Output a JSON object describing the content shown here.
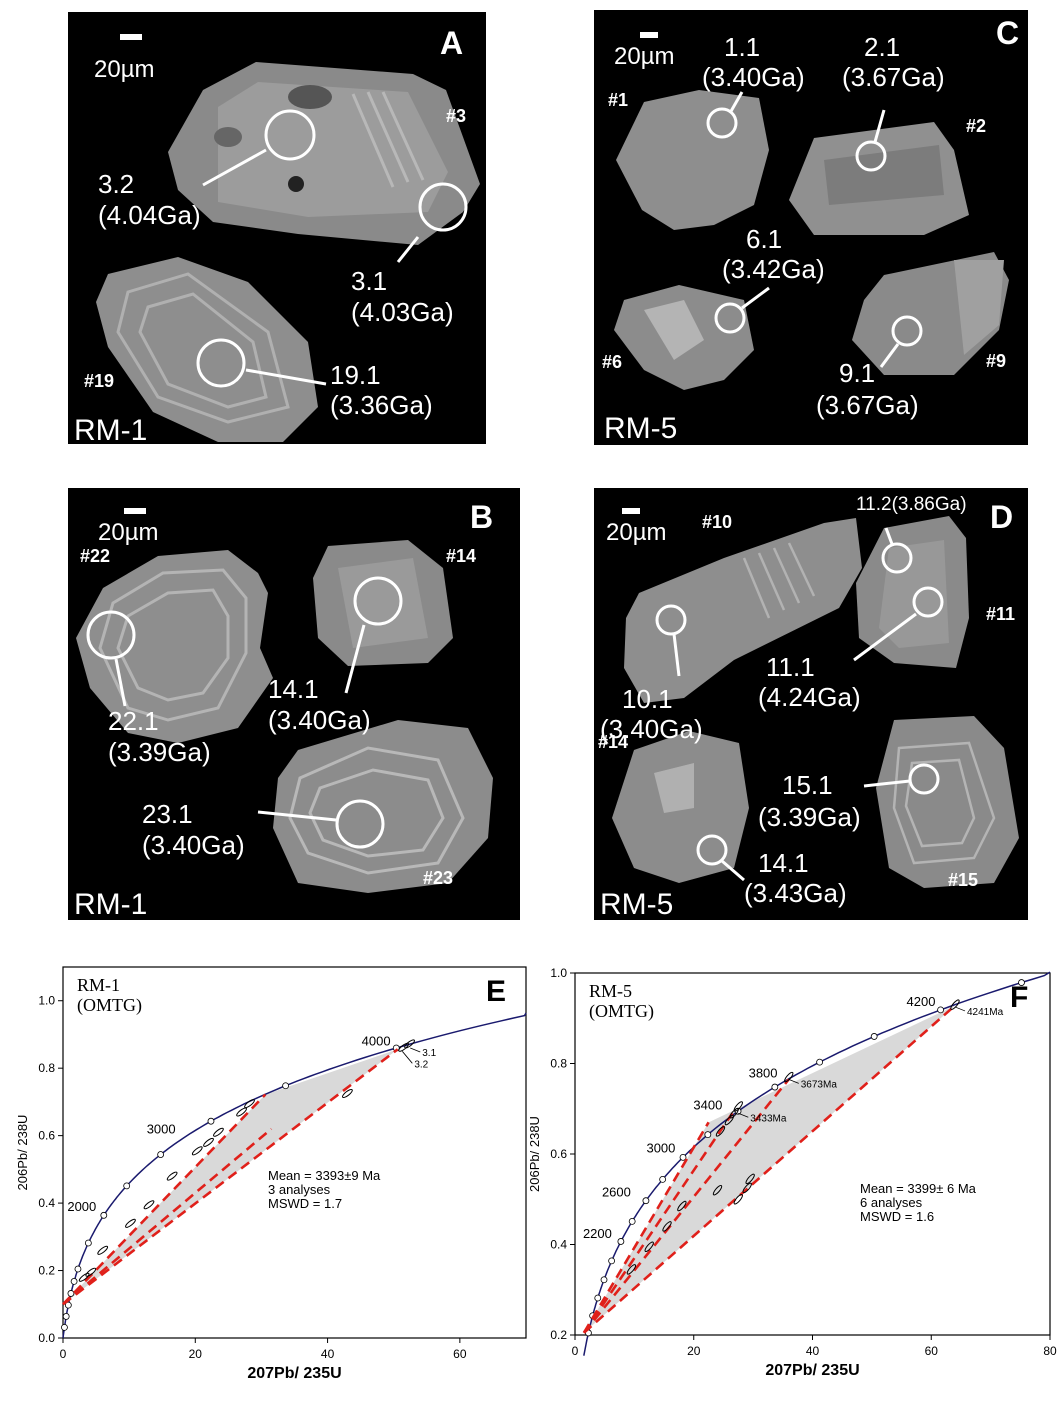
{
  "panels": {
    "A": {
      "letter": "A",
      "sample": "RM-1",
      "scale": "20µm",
      "grains": [
        "#3",
        "#19"
      ],
      "spots": [
        {
          "id": "3.2",
          "age": "(4.04Ga)"
        },
        {
          "id": "3.1",
          "age": "(4.03Ga)"
        },
        {
          "id": "19.1",
          "age": "(3.36Ga)"
        }
      ]
    },
    "B": {
      "letter": "B",
      "sample": "RM-1",
      "scale": "20µm",
      "grains": [
        "#22",
        "#14",
        "#23"
      ],
      "spots": [
        {
          "id": "22.1",
          "age": "(3.39Ga)"
        },
        {
          "id": "14.1",
          "age": "(3.40Ga)"
        },
        {
          "id": "23.1",
          "age": "(3.40Ga)"
        }
      ]
    },
    "C": {
      "letter": "C",
      "sample": "RM-5",
      "scale": "20µm",
      "grains": [
        "#1",
        "#2",
        "#6",
        "#9"
      ],
      "spots": [
        {
          "id": "1.1",
          "age": "(3.40Ga)"
        },
        {
          "id": "2.1",
          "age": "(3.67Ga)"
        },
        {
          "id": "6.1",
          "age": "(3.42Ga)"
        },
        {
          "id": "9.1",
          "age": "(3.67Ga)"
        }
      ]
    },
    "D": {
      "letter": "D",
      "sample": "RM-5",
      "scale": "20µm",
      "grains": [
        "#10",
        "#11",
        "#14",
        "#15"
      ],
      "spots": [
        {
          "id": "11.2(3.86Ga)",
          "age": ""
        },
        {
          "id": "10.1",
          "age": "(3.40Ga)"
        },
        {
          "id": "11.1",
          "age": "(4.24Ga)"
        },
        {
          "id": "15.1",
          "age": "(3.39Ga)"
        },
        {
          "id": "14.1",
          "age": "(3.43Ga)"
        }
      ]
    }
  },
  "chart_data": [
    {
      "type": "scatter",
      "panel": "E",
      "title_line1": "RM-1",
      "title_line2": "(OMTG)",
      "xlabel": "207Pb/ 235U",
      "ylabel": "206Pb/ 238U",
      "xlim": [
        0,
        70
      ],
      "ylim": [
        0,
        1.1
      ],
      "xticks": [
        0,
        20,
        40,
        60
      ],
      "yticks": [
        0.0,
        0.2,
        0.4,
        0.6,
        0.8,
        1.0
      ],
      "concordia_age_labels": [
        {
          "age": 2000,
          "x": 6.1,
          "y": 0.364
        },
        {
          "age": 3000,
          "x": 18.1,
          "y": 0.595
        },
        {
          "age": 4000,
          "x": 50.6,
          "y": 0.856
        }
      ],
      "spot_labels": [
        {
          "text": "3.1",
          "x": 52.5,
          "y": 0.86
        },
        {
          "text": "3.2",
          "x": 51.3,
          "y": 0.85
        }
      ],
      "ellipses": [
        {
          "x": 52.4,
          "y": 0.872
        },
        {
          "x": 51.5,
          "y": 0.862
        },
        {
          "x": 43.0,
          "y": 0.725
        },
        {
          "x": 28.2,
          "y": 0.695
        },
        {
          "x": 27.0,
          "y": 0.67
        },
        {
          "x": 23.5,
          "y": 0.61
        },
        {
          "x": 22.0,
          "y": 0.58
        },
        {
          "x": 20.3,
          "y": 0.555
        },
        {
          "x": 16.5,
          "y": 0.48
        },
        {
          "x": 13.0,
          "y": 0.395
        },
        {
          "x": 10.2,
          "y": 0.34
        },
        {
          "x": 6.0,
          "y": 0.26
        },
        {
          "x": 3.2,
          "y": 0.18
        },
        {
          "x": 4.2,
          "y": 0.195
        }
      ],
      "discordia_lines": [
        {
          "from": [
            0,
            0.1
          ],
          "to": [
            30.6,
            0.722
          ]
        },
        {
          "from": [
            0,
            0.1
          ],
          "to": [
            50.6,
            0.856
          ]
        },
        {
          "from": [
            0,
            0.1
          ],
          "to": [
            31.5,
            0.62
          ]
        }
      ],
      "annotation": [
        "Mean = 3393±9 Ma",
        "3 analyses",
        "MSWD = 1.7"
      ]
    },
    {
      "type": "scatter",
      "panel": "F",
      "title_line1": "RM-5",
      "title_line2": "(OMTG)",
      "xlabel": "207Pb/ 235U",
      "ylabel": "206Pb/ 238U",
      "xlim": [
        0,
        80
      ],
      "ylim": [
        0.2,
        1.0
      ],
      "xticks": [
        0,
        20,
        40,
        60,
        80
      ],
      "yticks": [
        0.2,
        0.4,
        0.6,
        0.8,
        1.0
      ],
      "concordia_age_labels": [
        {
          "age": 2200,
          "x": 7.4,
          "y": 0.406
        },
        {
          "age": 2600,
          "x": 10.6,
          "y": 0.497
        },
        {
          "age": 3000,
          "x": 18.1,
          "y": 0.595
        },
        {
          "age": 3400,
          "x": 26.0,
          "y": 0.69
        },
        {
          "age": 3800,
          "x": 35.3,
          "y": 0.76
        },
        {
          "age": 4200,
          "x": 61.9,
          "y": 0.918
        }
      ],
      "spot_labels": [
        {
          "text": "4241Ma",
          "x": 64.0,
          "y": 0.925
        },
        {
          "text": "3673Ma",
          "x": 36.0,
          "y": 0.765
        },
        {
          "text": "3433Ma",
          "x": 27.5,
          "y": 0.69
        }
      ],
      "ellipses": [
        {
          "x": 64.0,
          "y": 0.93
        },
        {
          "x": 36.0,
          "y": 0.77
        },
        {
          "x": 27.5,
          "y": 0.705
        },
        {
          "x": 26.8,
          "y": 0.69
        },
        {
          "x": 26.0,
          "y": 0.675
        },
        {
          "x": 24.5,
          "y": 0.65
        },
        {
          "x": 29.5,
          "y": 0.545
        },
        {
          "x": 29.0,
          "y": 0.525
        },
        {
          "x": 24.0,
          "y": 0.52
        },
        {
          "x": 27.5,
          "y": 0.5
        },
        {
          "x": 18.0,
          "y": 0.485
        },
        {
          "x": 15.5,
          "y": 0.44
        },
        {
          "x": 12.5,
          "y": 0.395
        },
        {
          "x": 9.5,
          "y": 0.345
        }
      ],
      "discordia_lines": [
        {
          "from": [
            1.5,
            0.205
          ],
          "to": [
            64.0,
            0.928
          ]
        },
        {
          "from": [
            1.5,
            0.205
          ],
          "to": [
            36.0,
            0.765
          ]
        },
        {
          "from": [
            1.5,
            0.205
          ],
          "to": [
            26.5,
            0.69
          ]
        },
        {
          "from": [
            1.5,
            0.205
          ],
          "to": [
            22.5,
            0.67
          ]
        }
      ],
      "annotation": [
        "Mean = 3399± 6 Ma",
        "6 analyses",
        "MSWD = 1.6"
      ]
    }
  ]
}
